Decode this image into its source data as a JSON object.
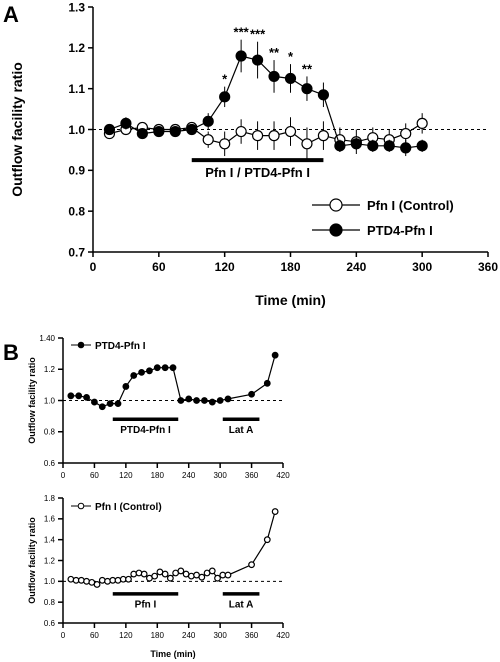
{
  "panels": {
    "A": {
      "label": "A"
    },
    "B": {
      "label": "B"
    }
  },
  "chart_data": [
    {
      "type": "line",
      "panel": "A",
      "ylabel": "Outflow facility ratio",
      "xlabel": "Time (min)",
      "xlim": [
        0,
        360
      ],
      "ylim": [
        0.7,
        1.3
      ],
      "xticks": [
        0,
        60,
        120,
        180,
        240,
        300,
        360
      ],
      "yticks": [
        0.7,
        0.8,
        0.9,
        1.0,
        1.1,
        1.2,
        1.3
      ],
      "ytick_labels": [
        "0.7",
        "0.8",
        "0.9",
        "1.0",
        "1.1",
        "1.2",
        "1.3"
      ],
      "reference_line": 1.0,
      "legend_position": "bottom-right",
      "bar": {
        "label": "Pfn I / PTD4-Pfn I",
        "start": 90,
        "end": 210,
        "y": 0.925
      },
      "series": [
        {
          "name": "Pfn I (Control)",
          "marker": "open-circle",
          "x": [
            15,
            30,
            45,
            60,
            75,
            90,
            105,
            120,
            135,
            150,
            165,
            180,
            195,
            210,
            225,
            240,
            255,
            270,
            285,
            300
          ],
          "y": [
            0.99,
            1.0,
            1.005,
            1.0,
            1.0,
            1.005,
            0.975,
            0.965,
            0.995,
            0.985,
            0.985,
            0.995,
            0.965,
            0.985,
            0.975,
            0.97,
            0.98,
            0.975,
            0.99,
            1.015
          ],
          "err": [
            0.01,
            0.012,
            0.012,
            0.01,
            0.012,
            0.012,
            0.02,
            0.03,
            0.03,
            0.035,
            0.035,
            0.035,
            0.04,
            0.035,
            0.03,
            0.03,
            0.025,
            0.025,
            0.025,
            0.025
          ]
        },
        {
          "name": "PTD4-Pfn I",
          "marker": "filled-circle",
          "x": [
            15,
            30,
            45,
            60,
            75,
            90,
            105,
            120,
            135,
            150,
            165,
            180,
            195,
            210,
            225,
            240,
            255,
            270,
            285,
            300
          ],
          "y": [
            1.0,
            1.015,
            0.99,
            0.995,
            0.995,
            1.0,
            1.02,
            1.08,
            1.18,
            1.17,
            1.13,
            1.125,
            1.1,
            1.085,
            0.96,
            0.965,
            0.96,
            0.96,
            0.955,
            0.96
          ],
          "err": [
            0.01,
            0.015,
            0.012,
            0.012,
            0.012,
            0.012,
            0.02,
            0.025,
            0.04,
            0.045,
            0.04,
            0.035,
            0.03,
            0.03,
            0.015,
            0.015,
            0.015,
            0.015,
            0.02,
            0.015
          ]
        }
      ],
      "significance": [
        {
          "x": 120,
          "y": 1.08,
          "err": 0.025,
          "label": "*"
        },
        {
          "x": 135,
          "y": 1.18,
          "err": 0.04,
          "label": "***"
        },
        {
          "x": 150,
          "y": 1.17,
          "err": 0.045,
          "label": "***"
        },
        {
          "x": 165,
          "y": 1.13,
          "err": 0.04,
          "label": "**"
        },
        {
          "x": 180,
          "y": 1.125,
          "err": 0.035,
          "label": "*"
        },
        {
          "x": 195,
          "y": 1.1,
          "err": 0.03,
          "label": "**"
        }
      ]
    },
    {
      "type": "line",
      "panel": "B-top",
      "ylabel": "Outflow facility ratio",
      "xlim": [
        0,
        420
      ],
      "ylim": [
        0.6,
        1.4
      ],
      "xticks": [
        0,
        60,
        120,
        180,
        240,
        300,
        360,
        420
      ],
      "yticks": [
        0.6,
        0.8,
        1.0,
        1.2,
        1.4
      ],
      "ytick_labels": [
        "0.6",
        "0.8",
        "1.0",
        "1.2",
        "1.40"
      ],
      "reference_line": 1.0,
      "legend_position": "top-left",
      "bars": [
        {
          "label": "PTD4-Pfn I",
          "start": 95,
          "end": 220,
          "y": 0.88
        },
        {
          "label": "Lat A",
          "start": 305,
          "end": 375,
          "y": 0.88
        }
      ],
      "series": [
        {
          "name": "PTD4-Pfn I",
          "marker": "filled-circle",
          "x": [
            15,
            30,
            45,
            60,
            75,
            90,
            105,
            120,
            135,
            150,
            165,
            180,
            195,
            210,
            225,
            240,
            255,
            270,
            285,
            300,
            315,
            360,
            390,
            405
          ],
          "y": [
            1.03,
            1.03,
            1.02,
            0.99,
            0.96,
            0.98,
            0.98,
            1.09,
            1.16,
            1.18,
            1.19,
            1.21,
            1.21,
            1.21,
            1.0,
            1.01,
            1.0,
            1.0,
            0.99,
            1.0,
            1.01,
            1.04,
            1.11,
            1.29
          ]
        }
      ]
    },
    {
      "type": "line",
      "panel": "B-bottom",
      "ylabel": "Outflow facility ratio",
      "xlabel": "Time (min)",
      "xlim": [
        0,
        420
      ],
      "ylim": [
        0.6,
        1.8
      ],
      "xticks": [
        0,
        60,
        120,
        180,
        240,
        300,
        360,
        420
      ],
      "yticks": [
        0.6,
        0.8,
        1.0,
        1.2,
        1.4,
        1.6,
        1.8
      ],
      "ytick_labels": [
        "0.6",
        "0.8",
        "1.0",
        "1.2",
        "1.4",
        "1.6",
        "1.8"
      ],
      "reference_line": 1.0,
      "legend_position": "top-left",
      "bars": [
        {
          "label": "Pfn I",
          "start": 95,
          "end": 220,
          "y": 0.88
        },
        {
          "label": "Lat A",
          "start": 305,
          "end": 375,
          "y": 0.88
        }
      ],
      "series": [
        {
          "name": "Pfn I (Control)",
          "marker": "open-circle",
          "x": [
            15,
            25,
            35,
            45,
            55,
            65,
            75,
            85,
            95,
            105,
            115,
            125,
            135,
            145,
            155,
            165,
            175,
            185,
            195,
            205,
            215,
            225,
            235,
            245,
            255,
            265,
            275,
            285,
            295,
            305,
            315,
            360,
            390,
            405
          ],
          "y": [
            1.02,
            1.01,
            1.01,
            1.0,
            0.99,
            0.97,
            1.01,
            1.0,
            1.01,
            1.01,
            1.02,
            1.02,
            1.07,
            1.08,
            1.07,
            1.03,
            1.05,
            1.09,
            1.07,
            1.03,
            1.08,
            1.1,
            1.07,
            1.05,
            1.06,
            1.04,
            1.08,
            1.1,
            1.03,
            1.06,
            1.06,
            1.16,
            1.4,
            1.67
          ]
        }
      ]
    }
  ]
}
